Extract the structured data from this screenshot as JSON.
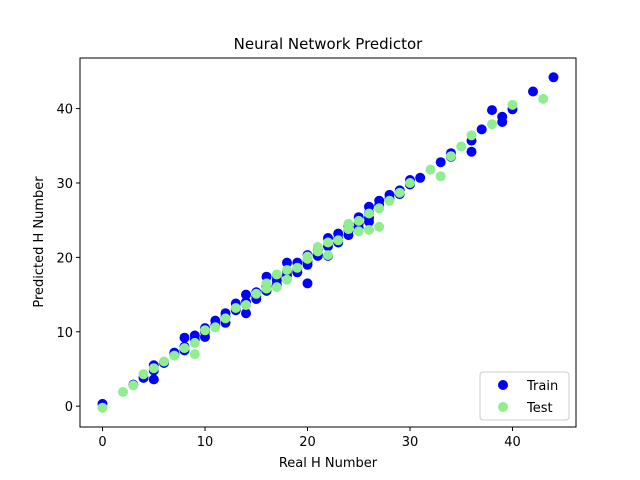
{
  "chart_data": {
    "type": "scatter",
    "title": "Neural Network Predictor",
    "xlabel": "Real H Number",
    "ylabel": "Predicted H Number",
    "xlim": [
      -2.2,
      46.2
    ],
    "ylim": [
      -2.8,
      46.8
    ],
    "xticks": [
      0,
      10,
      20,
      30,
      40
    ],
    "yticks": [
      0,
      10,
      20,
      30,
      40
    ],
    "grid": false,
    "legend_position": "bottom-right",
    "series": [
      {
        "name": "Train",
        "color": "#0000ff",
        "points": [
          [
            0,
            0.3
          ],
          [
            3,
            2.9
          ],
          [
            4,
            3.8
          ],
          [
            5,
            5.5
          ],
          [
            5,
            3.6
          ],
          [
            5,
            4.8
          ],
          [
            6,
            5.8
          ],
          [
            7,
            7.2
          ],
          [
            7,
            6.9
          ],
          [
            8,
            9.2
          ],
          [
            8,
            8.0
          ],
          [
            8,
            7.5
          ],
          [
            9,
            8.9
          ],
          [
            9,
            9.5
          ],
          [
            10,
            10.5
          ],
          [
            10,
            9.3
          ],
          [
            10,
            10.0
          ],
          [
            11,
            11.5
          ],
          [
            11,
            10.9
          ],
          [
            12,
            12.0
          ],
          [
            12,
            11.2
          ],
          [
            12,
            12.5
          ],
          [
            13,
            13.8
          ],
          [
            13,
            12.9
          ],
          [
            13,
            13.1
          ],
          [
            14,
            15.0
          ],
          [
            14,
            12.5
          ],
          [
            14,
            14.0
          ],
          [
            15,
            15.3
          ],
          [
            15,
            14.4
          ],
          [
            15,
            14.8
          ],
          [
            16,
            17.4
          ],
          [
            16,
            16.1
          ],
          [
            16,
            15.5
          ],
          [
            17,
            17.5
          ],
          [
            17,
            16.9
          ],
          [
            17,
            16.3
          ],
          [
            18,
            18.1
          ],
          [
            18,
            19.3
          ],
          [
            18,
            17.6
          ],
          [
            19,
            19.3
          ],
          [
            19,
            18.5
          ],
          [
            19,
            18.0
          ],
          [
            20,
            20.3
          ],
          [
            20,
            19.4
          ],
          [
            20,
            16.5
          ],
          [
            20,
            19.0
          ],
          [
            21,
            21.0
          ],
          [
            21,
            20.5
          ],
          [
            21,
            20.2
          ],
          [
            22,
            22.6
          ],
          [
            22,
            21.5
          ],
          [
            22,
            20.2
          ],
          [
            23,
            23.2
          ],
          [
            23,
            22.5
          ],
          [
            23,
            22.0
          ],
          [
            24,
            24.2
          ],
          [
            24,
            23.6
          ],
          [
            24,
            23.0
          ],
          [
            25,
            25.4
          ],
          [
            25,
            24.6
          ],
          [
            25,
            24.0
          ],
          [
            26,
            26.0
          ],
          [
            26,
            25.3
          ],
          [
            26,
            24.8
          ],
          [
            26,
            26.8
          ],
          [
            27,
            27.6
          ],
          [
            27,
            27.0
          ],
          [
            28,
            28.4
          ],
          [
            28,
            27.9
          ],
          [
            29,
            29.0
          ],
          [
            29,
            28.5
          ],
          [
            30,
            30.4
          ],
          [
            30,
            29.8
          ],
          [
            31,
            30.7
          ],
          [
            33,
            32.8
          ],
          [
            34,
            34.0
          ],
          [
            34,
            33.5
          ],
          [
            36,
            35.7
          ],
          [
            36,
            34.2
          ],
          [
            37,
            37.2
          ],
          [
            38,
            39.8
          ],
          [
            39,
            38.9
          ],
          [
            39,
            38.2
          ],
          [
            40,
            39.9
          ],
          [
            42,
            42.3
          ],
          [
            44,
            44.2
          ]
        ]
      },
      {
        "name": "Test",
        "color": "#90ee90",
        "points": [
          [
            0,
            -0.2
          ],
          [
            2,
            1.9
          ],
          [
            3,
            2.8
          ],
          [
            4,
            4.3
          ],
          [
            5,
            5.1
          ],
          [
            6,
            6.0
          ],
          [
            7,
            6.8
          ],
          [
            8,
            7.8
          ],
          [
            9,
            7.0
          ],
          [
            9,
            8.5
          ],
          [
            10,
            10.2
          ],
          [
            11,
            10.6
          ],
          [
            12,
            11.8
          ],
          [
            13,
            13.2
          ],
          [
            14,
            13.6
          ],
          [
            15,
            15.1
          ],
          [
            16,
            16.5
          ],
          [
            16,
            15.8
          ],
          [
            17,
            16.0
          ],
          [
            17,
            17.7
          ],
          [
            18,
            18.3
          ],
          [
            18,
            17.0
          ],
          [
            19,
            18.6
          ],
          [
            20,
            19.8
          ],
          [
            20,
            20.1
          ],
          [
            21,
            21.4
          ],
          [
            21,
            20.8
          ],
          [
            22,
            22.0
          ],
          [
            22,
            20.3
          ],
          [
            23,
            22.3
          ],
          [
            24,
            23.8
          ],
          [
            24,
            24.5
          ],
          [
            25,
            23.5
          ],
          [
            25,
            24.9
          ],
          [
            26,
            23.7
          ],
          [
            26,
            25.9
          ],
          [
            27,
            24.1
          ],
          [
            27,
            26.6
          ],
          [
            28,
            27.6
          ],
          [
            29,
            28.7
          ],
          [
            30,
            30.0
          ],
          [
            32,
            31.8
          ],
          [
            33,
            30.9
          ],
          [
            34,
            33.6
          ],
          [
            35,
            34.9
          ],
          [
            36,
            36.4
          ],
          [
            38,
            37.9
          ],
          [
            40,
            40.5
          ],
          [
            43,
            41.3
          ]
        ]
      }
    ]
  }
}
